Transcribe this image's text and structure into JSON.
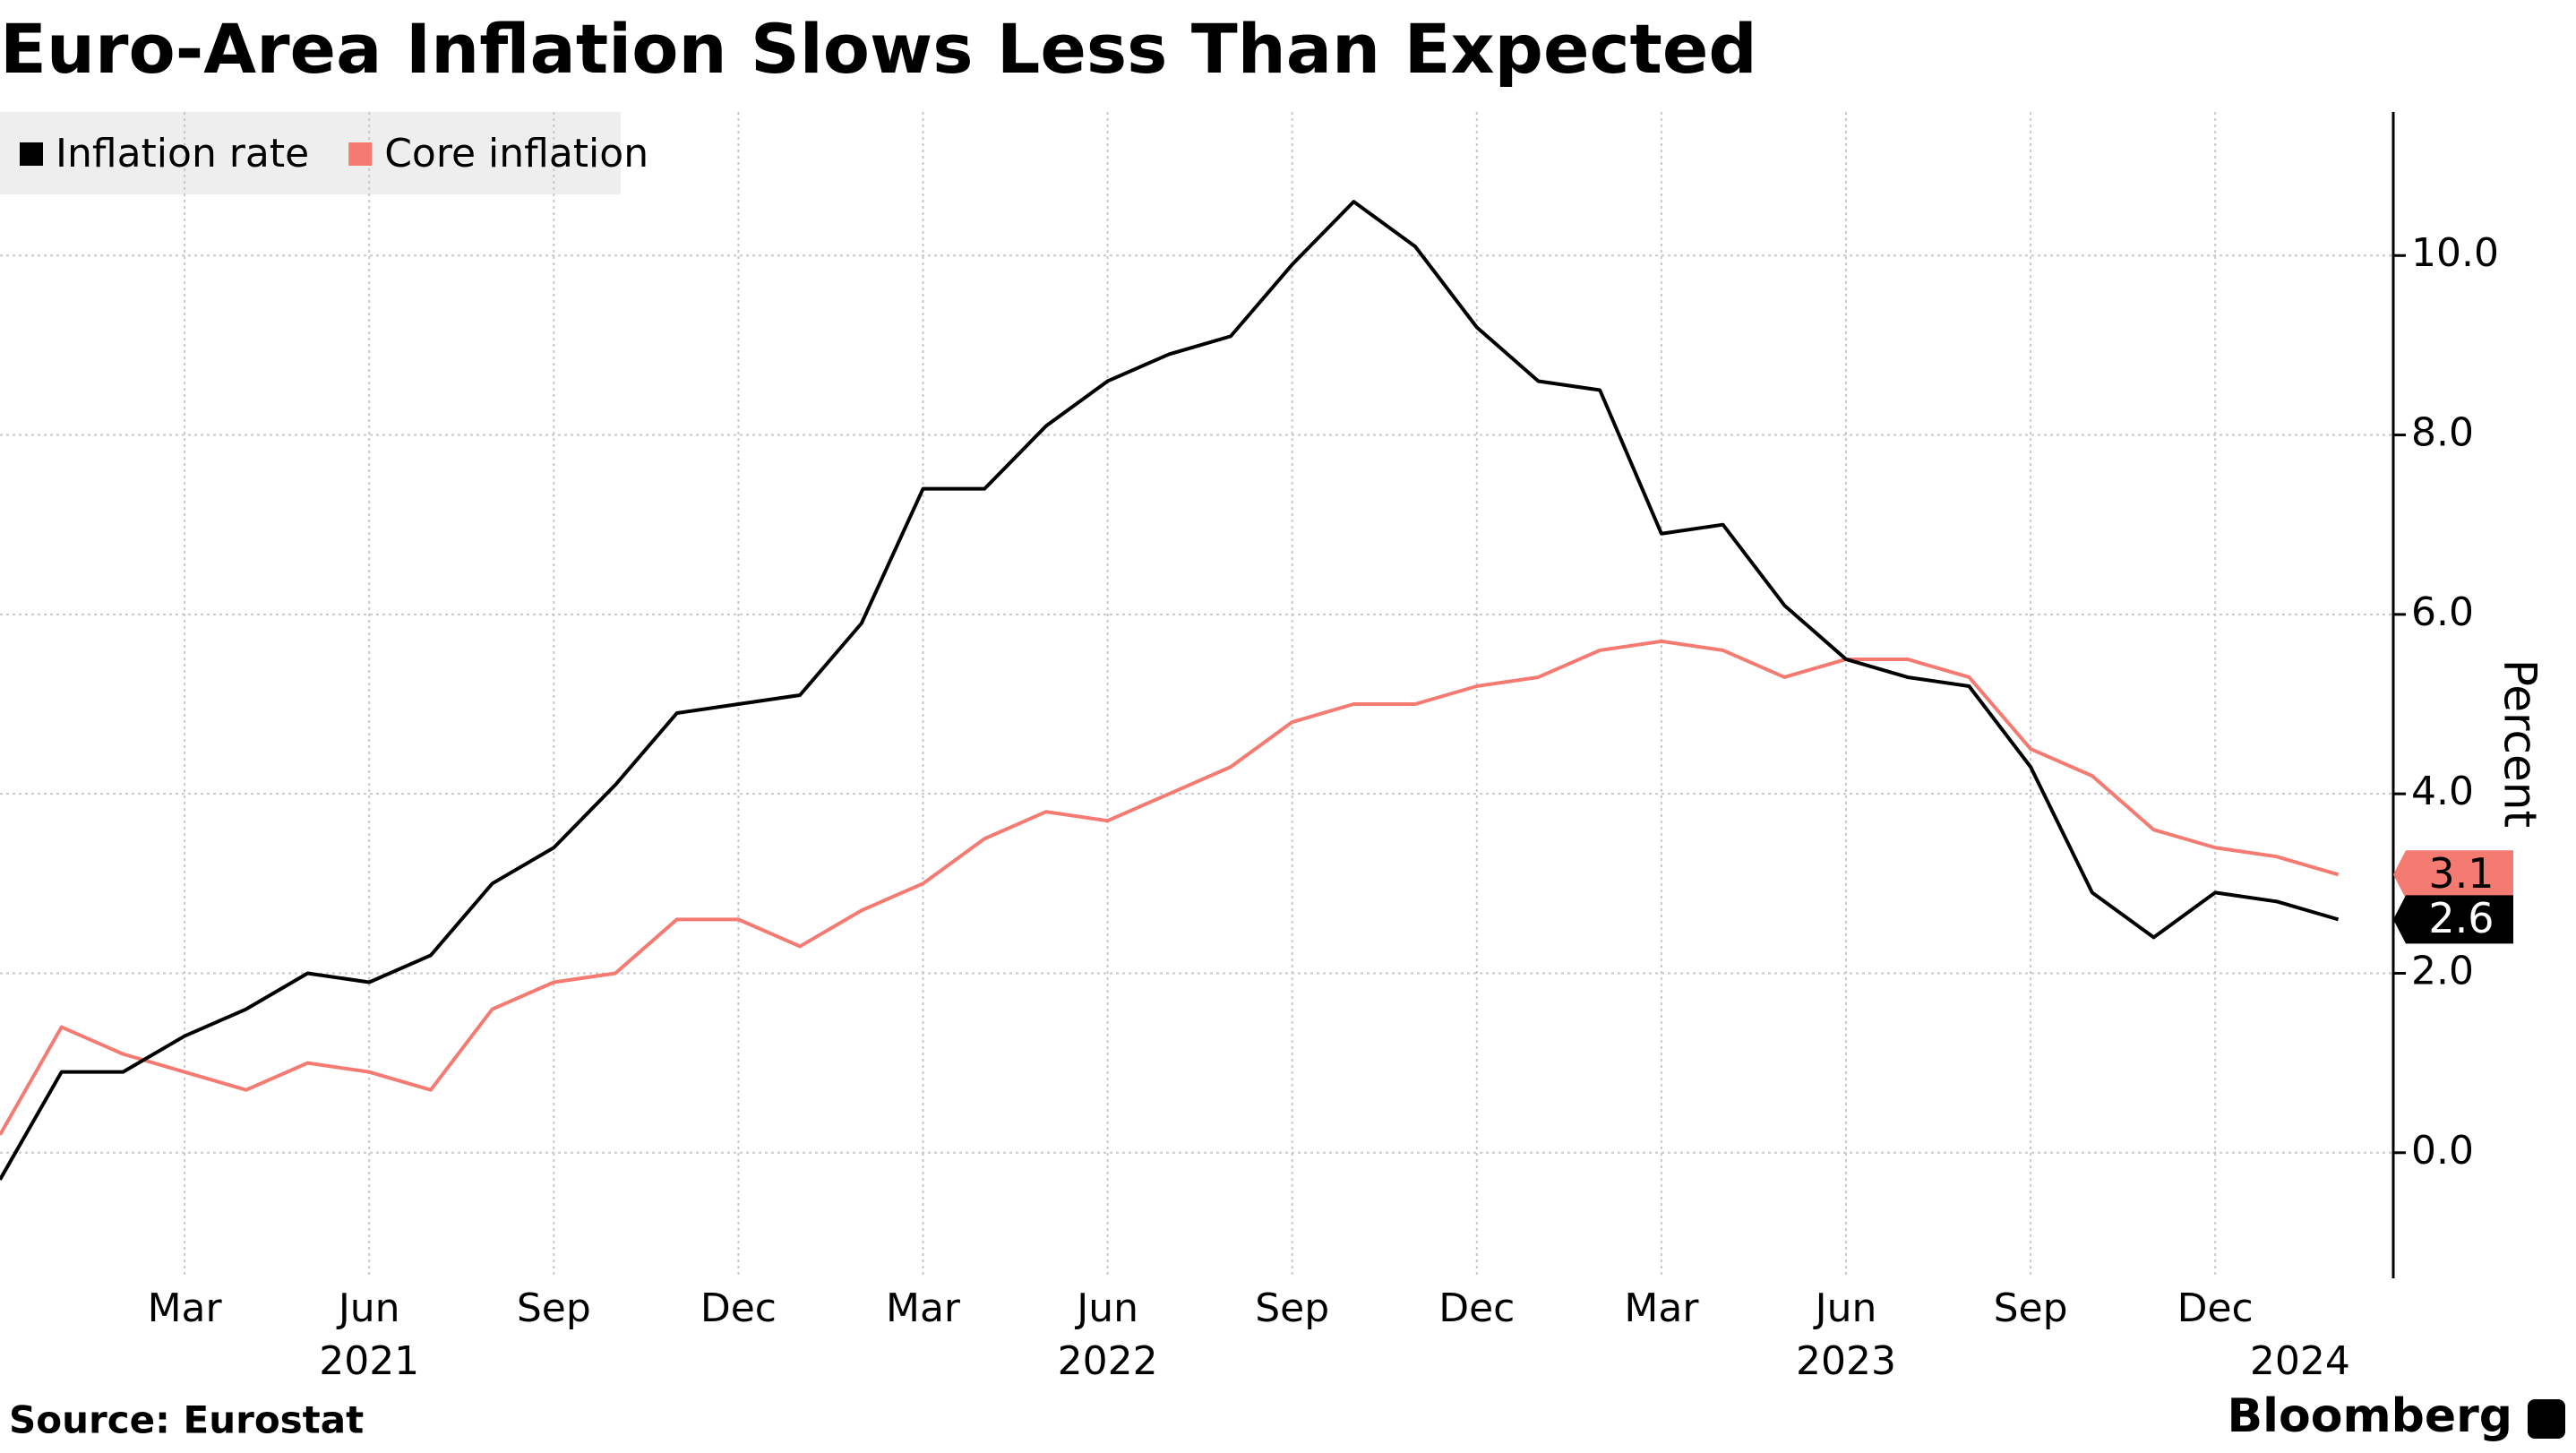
{
  "chart_data": {
    "type": "line",
    "title": "Euro-Area Inflation Slows Less Than Expected",
    "source": "Source: Eurostat",
    "brand": "Bloomberg",
    "y_label": "Percent",
    "categories": [
      null,
      null,
      null,
      "Mar",
      null,
      null,
      "Jun",
      null,
      null,
      "Sep",
      null,
      null,
      "Dec",
      null,
      null,
      "Mar",
      null,
      null,
      "Jun",
      null,
      null,
      "Sep",
      null,
      null,
      "Dec",
      null,
      null,
      "Mar",
      null,
      null,
      "Jun",
      null,
      null,
      "Sep",
      null,
      null,
      "Dec",
      null,
      null
    ],
    "category_years": [
      null,
      null,
      null,
      null,
      null,
      null,
      "2021",
      null,
      null,
      null,
      null,
      null,
      null,
      null,
      null,
      null,
      null,
      null,
      "2022",
      null,
      null,
      null,
      null,
      null,
      null,
      null,
      null,
      null,
      null,
      null,
      "2023",
      null,
      null,
      null,
      null,
      null,
      null,
      "2024",
      null
    ],
    "series": [
      {
        "name": "Inflation rate",
        "color": "#000000",
        "values": [
          -0.3,
          0.9,
          0.9,
          1.3,
          1.6,
          2.0,
          1.9,
          2.2,
          3.0,
          3.4,
          4.1,
          4.9,
          5.0,
          5.1,
          5.9,
          7.4,
          7.4,
          8.1,
          8.6,
          8.9,
          9.1,
          9.9,
          10.6,
          10.1,
          9.2,
          8.6,
          8.5,
          6.9,
          7.0,
          6.1,
          5.5,
          5.3,
          5.2,
          4.3,
          2.9,
          2.4,
          2.9,
          2.8,
          2.6
        ]
      },
      {
        "name": "Core inflation",
        "color": "#f47a72",
        "values": [
          0.2,
          1.4,
          1.1,
          0.9,
          0.7,
          1.0,
          0.9,
          0.7,
          1.6,
          1.9,
          2.0,
          2.6,
          2.6,
          2.3,
          2.7,
          3.0,
          3.5,
          3.8,
          3.7,
          4.0,
          4.3,
          4.8,
          5.0,
          5.0,
          5.2,
          5.3,
          5.6,
          5.7,
          5.6,
          5.3,
          5.5,
          5.5,
          5.3,
          4.5,
          4.2,
          3.6,
          3.4,
          3.3,
          3.1
        ]
      }
    ],
    "ylim": [
      -1.4,
      11.6
    ],
    "yticks": [
      {
        "value": 0,
        "label": "0.0"
      },
      {
        "value": 2,
        "label": "2.0"
      },
      {
        "value": 4,
        "label": "4.0"
      },
      {
        "value": 6,
        "label": "6.0"
      },
      {
        "value": 8,
        "label": "8.0"
      },
      {
        "value": 10,
        "label": "10.0"
      }
    ],
    "grid": true
  }
}
